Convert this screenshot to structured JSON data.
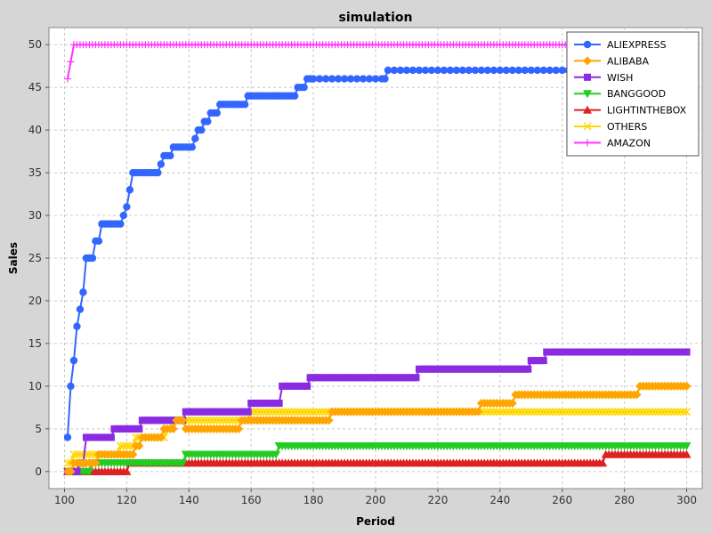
{
  "chart_data": {
    "type": "line",
    "title": "simulation",
    "xlabel": "Period",
    "ylabel": "Sales",
    "xlim": [
      95,
      305
    ],
    "ylim": [
      -2,
      52
    ],
    "xticks": [
      100,
      120,
      140,
      160,
      180,
      200,
      220,
      240,
      260,
      280,
      300
    ],
    "yticks": [
      0,
      5,
      10,
      15,
      20,
      25,
      30,
      35,
      40,
      45,
      50
    ],
    "grid": true,
    "legend_position": "top-right",
    "series": [
      {
        "name": "ALIEXPRESS",
        "color": "#3366ff",
        "marker": "circle",
        "points": [
          [
            101,
            4
          ],
          [
            102,
            10
          ],
          [
            103,
            13
          ],
          [
            104,
            17
          ],
          [
            105,
            19
          ],
          [
            106,
            21
          ],
          [
            107,
            25
          ],
          [
            108,
            25
          ],
          [
            109,
            25
          ],
          [
            110,
            27
          ],
          [
            111,
            27
          ],
          [
            112,
            29
          ],
          [
            113,
            29
          ],
          [
            114,
            29
          ],
          [
            115,
            29
          ],
          [
            116,
            29
          ],
          [
            117,
            29
          ],
          [
            118,
            29
          ],
          [
            119,
            30
          ],
          [
            120,
            31
          ],
          [
            121,
            33
          ],
          [
            122,
            35
          ],
          [
            123,
            35
          ],
          [
            124,
            35
          ],
          [
            125,
            35
          ],
          [
            126,
            35
          ],
          [
            127,
            35
          ],
          [
            128,
            35
          ],
          [
            129,
            35
          ],
          [
            130,
            35
          ],
          [
            131,
            36
          ],
          [
            132,
            37
          ],
          [
            133,
            37
          ],
          [
            134,
            37
          ],
          [
            135,
            38
          ],
          [
            136,
            38
          ],
          [
            137,
            38
          ],
          [
            138,
            38
          ],
          [
            139,
            38
          ],
          [
            140,
            38
          ],
          [
            141,
            38
          ],
          [
            142,
            39
          ],
          [
            143,
            40
          ],
          [
            144,
            40
          ],
          [
            145,
            41
          ],
          [
            146,
            41
          ],
          [
            147,
            42
          ],
          [
            148,
            42
          ],
          [
            149,
            42
          ],
          [
            150,
            43
          ],
          [
            151,
            43
          ],
          [
            152,
            43
          ],
          [
            153,
            43
          ],
          [
            154,
            43
          ],
          [
            155,
            43
          ],
          [
            156,
            43
          ],
          [
            157,
            43
          ],
          [
            158,
            43
          ],
          [
            159,
            44
          ],
          [
            160,
            44
          ],
          [
            161,
            44
          ],
          [
            162,
            44
          ],
          [
            163,
            44
          ],
          [
            164,
            44
          ],
          [
            165,
            44
          ],
          [
            166,
            44
          ],
          [
            167,
            44
          ],
          [
            168,
            44
          ],
          [
            169,
            44
          ],
          [
            170,
            44
          ],
          [
            171,
            44
          ],
          [
            172,
            44
          ],
          [
            173,
            44
          ],
          [
            174,
            44
          ],
          [
            175,
            45
          ],
          [
            176,
            45
          ],
          [
            177,
            45
          ],
          [
            178,
            46
          ],
          [
            179,
            46
          ],
          [
            180,
            46
          ],
          [
            182,
            46
          ],
          [
            184,
            46
          ],
          [
            186,
            46
          ],
          [
            188,
            46
          ],
          [
            190,
            46
          ],
          [
            192,
            46
          ],
          [
            194,
            46
          ],
          [
            196,
            46
          ],
          [
            198,
            46
          ],
          [
            200,
            46
          ],
          [
            202,
            46
          ],
          [
            203,
            46
          ],
          [
            204,
            47
          ],
          [
            206,
            47
          ],
          [
            208,
            47
          ],
          [
            210,
            47
          ],
          [
            212,
            47
          ],
          [
            214,
            47
          ],
          [
            216,
            47
          ],
          [
            218,
            47
          ],
          [
            220,
            47
          ],
          [
            222,
            47
          ],
          [
            224,
            47
          ],
          [
            226,
            47
          ],
          [
            228,
            47
          ],
          [
            230,
            47
          ],
          [
            232,
            47
          ],
          [
            234,
            47
          ],
          [
            236,
            47
          ],
          [
            238,
            47
          ],
          [
            240,
            47
          ],
          [
            242,
            47
          ],
          [
            244,
            47
          ],
          [
            246,
            47
          ],
          [
            248,
            47
          ],
          [
            250,
            47
          ],
          [
            252,
            47
          ],
          [
            254,
            47
          ],
          [
            256,
            47
          ],
          [
            258,
            47
          ],
          [
            260,
            47
          ],
          [
            262,
            47
          ],
          [
            264,
            47
          ],
          [
            266,
            47
          ],
          [
            268,
            47
          ],
          [
            270,
            47
          ],
          [
            272,
            47
          ],
          [
            274,
            47
          ],
          [
            276,
            47
          ],
          [
            278,
            47
          ],
          [
            280,
            47
          ],
          [
            282,
            47
          ],
          [
            284,
            47
          ],
          [
            286,
            47
          ],
          [
            288,
            47
          ],
          [
            290,
            47
          ],
          [
            292,
            47
          ],
          [
            294,
            47
          ],
          [
            296,
            47
          ],
          [
            298,
            47
          ],
          [
            300,
            47
          ]
        ]
      },
      {
        "name": "ALIBABA",
        "color": "#ffa500",
        "marker": "diamond",
        "steps": [
          [
            101,
            0
          ],
          [
            103,
            1
          ],
          [
            111,
            2
          ],
          [
            123,
            3
          ],
          [
            125,
            4
          ],
          [
            132,
            5
          ],
          [
            136,
            6
          ],
          [
            139,
            5
          ],
          [
            157,
            6
          ],
          [
            186,
            7
          ],
          [
            234,
            8
          ],
          [
            245,
            9
          ],
          [
            285,
            10
          ],
          [
            300,
            10
          ]
        ]
      },
      {
        "name": "WISH",
        "color": "#8a2be2",
        "marker": "square",
        "steps": [
          [
            101,
            0
          ],
          [
            105,
            1
          ],
          [
            107,
            4
          ],
          [
            116,
            5
          ],
          [
            125,
            6
          ],
          [
            139,
            7
          ],
          [
            160,
            8
          ],
          [
            170,
            10
          ],
          [
            179,
            11
          ],
          [
            214,
            12
          ],
          [
            250,
            13
          ],
          [
            255,
            14
          ],
          [
            300,
            14
          ]
        ]
      },
      {
        "name": "BANGGOOD",
        "color": "#22cc22",
        "marker": "triangle-down",
        "steps": [
          [
            101,
            0
          ],
          [
            109,
            1
          ],
          [
            139,
            2
          ],
          [
            169,
            3
          ],
          [
            300,
            3
          ]
        ]
      },
      {
        "name": "LIGHTINTHEBOX",
        "color": "#dd2222",
        "marker": "triangle-up",
        "steps": [
          [
            101,
            0
          ],
          [
            121,
            1
          ],
          [
            274,
            2
          ],
          [
            300,
            2
          ]
        ]
      },
      {
        "name": "OTHERS",
        "color": "#ffd700",
        "marker": "cross",
        "steps": [
          [
            101,
            1
          ],
          [
            103,
            2
          ],
          [
            118,
            3
          ],
          [
            123,
            4
          ],
          [
            133,
            5
          ],
          [
            135,
            6
          ],
          [
            160,
            7
          ],
          [
            300,
            7
          ]
        ]
      },
      {
        "name": "AMAZON",
        "color": "#ff33ff",
        "marker": "plus",
        "points": [
          [
            101,
            46
          ],
          [
            102,
            48
          ],
          [
            103,
            50
          ],
          [
            300,
            50
          ]
        ],
        "fill_steps": [
          [
            103,
            50
          ],
          [
            300,
            50
          ]
        ]
      }
    ]
  }
}
